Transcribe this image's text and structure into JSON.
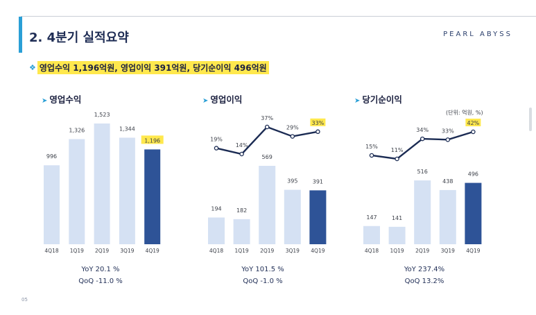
{
  "header": {
    "title": "2. 4분기 실적요약",
    "brand": "PEARL ABYSS"
  },
  "summary": {
    "bullet_icon": "diamond-arrow-icon",
    "text": "영업수익 1,196억원, 영업이익 391억원, 당기순이익 496억원"
  },
  "unit_note": "(단위: 억원, %)",
  "page_number": "05",
  "colors": {
    "bar_light": "#d5e1f3",
    "bar_dark": "#2e5397",
    "line": "#1b2b53",
    "highlight": "#ffe84d",
    "accent": "#2a9fd6"
  },
  "chart_data": [
    {
      "type": "bar",
      "title": "영업수익",
      "categories": [
        "4Q18",
        "1Q19",
        "2Q19",
        "3Q19",
        "4Q19"
      ],
      "values": [
        996,
        1326,
        1523,
        1344,
        1196
      ],
      "value_labels": [
        "996",
        "1,326",
        "1,523",
        "1,344",
        "1,196"
      ],
      "highlight_index": 4,
      "stats": {
        "yoy": "YoY  20.1 %",
        "qoq": "QoQ  -11.0 %"
      }
    },
    {
      "type": "bar+line",
      "title": "영업이익",
      "categories": [
        "4Q18",
        "1Q19",
        "2Q19",
        "3Q19",
        "4Q19"
      ],
      "values": [
        194,
        182,
        569,
        395,
        391
      ],
      "value_labels": [
        "194",
        "182",
        "569",
        "395",
        "391"
      ],
      "margin_values": [
        19,
        14,
        37,
        29,
        33
      ],
      "margin_labels": [
        "19%",
        "14%",
        "37%",
        "29%",
        "33%"
      ],
      "highlight_index": 4,
      "stats": {
        "yoy": "YoY  101.5 %",
        "qoq": "QoQ  -1.0 %"
      }
    },
    {
      "type": "bar+line",
      "title": "당기순이익",
      "categories": [
        "4Q18",
        "1Q19",
        "2Q19",
        "3Q19",
        "4Q19"
      ],
      "values": [
        147,
        141,
        516,
        438,
        496
      ],
      "value_labels": [
        "147",
        "141",
        "516",
        "438",
        "496"
      ],
      "margin_values": [
        15,
        11,
        34,
        33,
        42
      ],
      "margin_labels": [
        "15%",
        "11%",
        "34%",
        "33%",
        "42%"
      ],
      "highlight_index": 4,
      "stats": {
        "yoy": "YoY  237.4%",
        "qoq": "QoQ  13.2%"
      }
    }
  ]
}
